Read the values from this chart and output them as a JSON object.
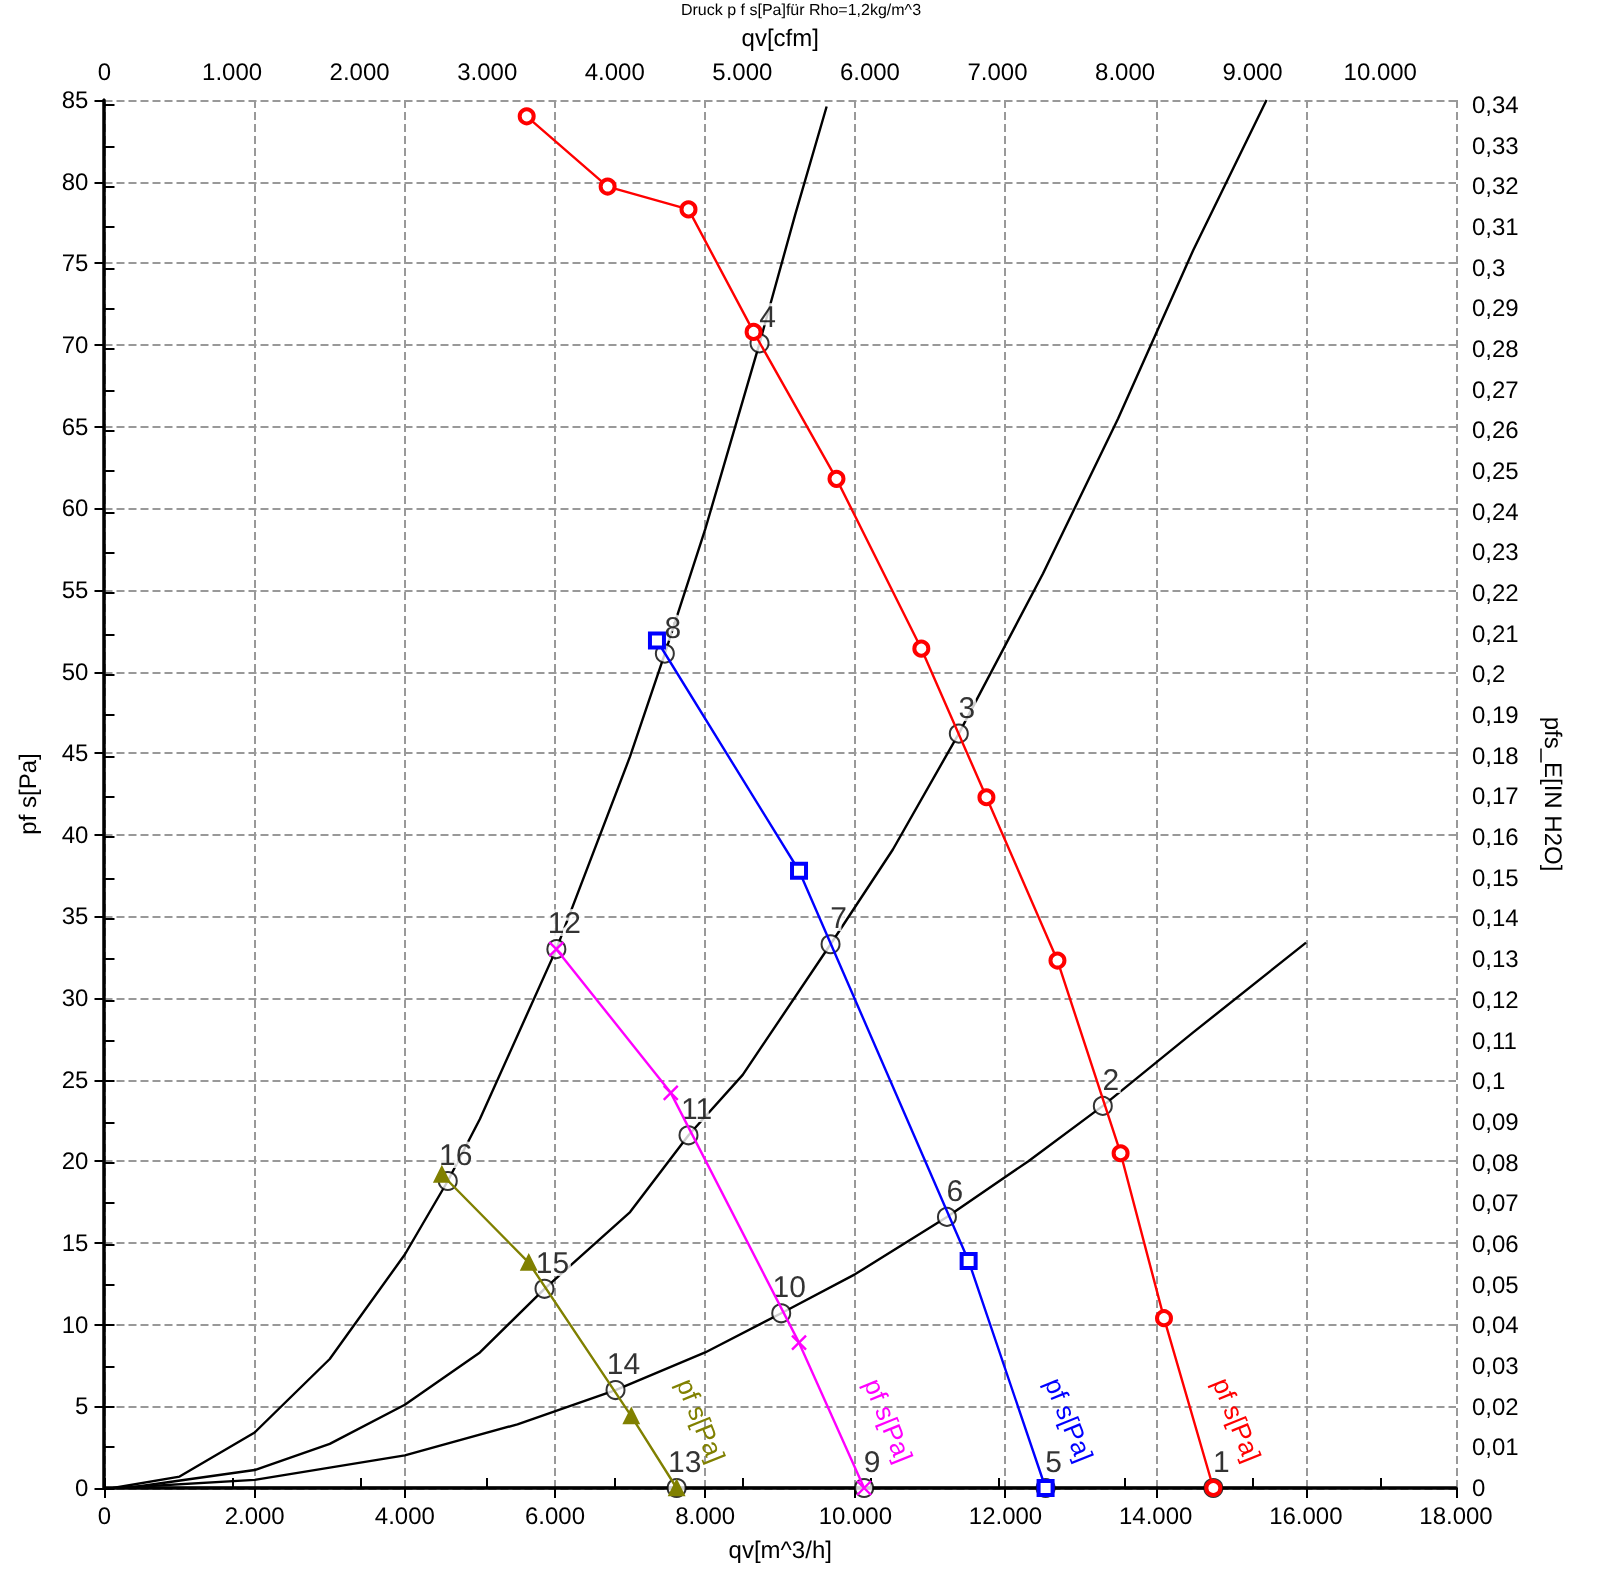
{
  "chart_data": {
    "type": "line",
    "title": "Druck p f s[Pa]für Rho=1,2kg/m^3",
    "xlabel": "qv[m^3/h]",
    "ylabel": "pf s[Pa]",
    "y2label": "pfs_E[IN H2O]",
    "x2label": "qv[cfm]",
    "xlim": [
      0,
      18000
    ],
    "xticks": [
      0,
      {
        "value": 2000,
        "label": "2.000"
      },
      {
        "value": 4000,
        "label": "4.000"
      },
      {
        "value": 6000,
        "label": "6.000"
      },
      {
        "value": 8000,
        "label": "8.000"
      },
      {
        "value": 10000,
        "label": "10.000"
      },
      {
        "value": 12000,
        "label": "12.000"
      },
      {
        "value": 14000,
        "label": "14.000"
      },
      {
        "value": 16000,
        "label": "16.000"
      },
      {
        "value": 18000,
        "label": "18.000"
      }
    ],
    "x2lim": [
      0,
      10594
    ],
    "x2ticks": [
      0,
      {
        "value": 1000,
        "label": "1.000"
      },
      {
        "value": 2000,
        "label": "2.000"
      },
      {
        "value": 3000,
        "label": "3.000"
      },
      {
        "value": 4000,
        "label": "4.000"
      },
      {
        "value": 5000,
        "label": "5.000"
      },
      {
        "value": 6000,
        "label": "6.000"
      },
      {
        "value": 7000,
        "label": "7.000"
      },
      {
        "value": 8000,
        "label": "8.000"
      },
      {
        "value": 9000,
        "label": "9.000"
      },
      {
        "value": 10000,
        "label": "10.000"
      }
    ],
    "ylim": [
      0,
      85
    ],
    "yticks": [
      0,
      5,
      10,
      15,
      20,
      25,
      30,
      35,
      40,
      45,
      50,
      55,
      60,
      65,
      70,
      75,
      80,
      85
    ],
    "y2lim": [
      0,
      0.3412
    ],
    "y2ticks": [
      0,
      {
        "value": 0.01,
        "label": "0,01"
      },
      {
        "value": 0.02,
        "label": "0,02"
      },
      {
        "value": 0.03,
        "label": "0,03"
      },
      {
        "value": 0.04,
        "label": "0,04"
      },
      {
        "value": 0.05,
        "label": "0,05"
      },
      {
        "value": 0.06,
        "label": "0,06"
      },
      {
        "value": 0.07,
        "label": "0,07"
      },
      {
        "value": 0.08,
        "label": "0,08"
      },
      {
        "value": 0.09,
        "label": "0,09"
      },
      {
        "value": 0.1,
        "label": "0,1"
      },
      {
        "value": 0.11,
        "label": "0,11"
      },
      {
        "value": 0.12,
        "label": "0,12"
      },
      {
        "value": 0.13,
        "label": "0,13"
      },
      {
        "value": 0.14,
        "label": "0,14"
      },
      {
        "value": 0.15,
        "label": "0,15"
      },
      {
        "value": 0.16,
        "label": "0,16"
      },
      {
        "value": 0.17,
        "label": "0,17"
      },
      {
        "value": 0.18,
        "label": "0,18"
      },
      {
        "value": 0.19,
        "label": "0,19"
      },
      {
        "value": 0.2,
        "label": "0,2"
      },
      {
        "value": 0.21,
        "label": "0,21"
      },
      {
        "value": 0.22,
        "label": "0,22"
      },
      {
        "value": 0.23,
        "label": "0,23"
      },
      {
        "value": 0.24,
        "label": "0,24"
      },
      {
        "value": 0.25,
        "label": "0,25"
      },
      {
        "value": 0.26,
        "label": "0,26"
      },
      {
        "value": 0.27,
        "label": "0,27"
      },
      {
        "value": 0.28,
        "label": "0,28"
      },
      {
        "value": 0.29,
        "label": "0,29"
      },
      {
        "value": 0.3,
        "label": "0,3"
      },
      {
        "value": 0.31,
        "label": "0,31"
      },
      {
        "value": 0.32,
        "label": "0,32"
      },
      {
        "value": 0.33,
        "label": "0,33"
      },
      {
        "value": 0.34,
        "label": "0,34"
      }
    ],
    "grid": true,
    "series": [
      {
        "name": "pf s[Pa]",
        "color": "#ff0000",
        "marker": "circle",
        "x": [
          5623,
          6701,
          7778,
          8645,
          9749,
          10879,
          11746,
          12692,
          13533,
          14111,
          14768
        ],
        "values": [
          84.0,
          79.7,
          78.3,
          70.8,
          61.8,
          51.4,
          42.3,
          32.3,
          20.5,
          10.4,
          0
        ]
      },
      {
        "name": "pf s[Pa]",
        "color": "#0000ff",
        "marker": "square",
        "x": [
          7358,
          9250,
          11509,
          12534
        ],
        "values": [
          51.9,
          37.8,
          13.9,
          0
        ]
      },
      {
        "name": "pf s[Pa]",
        "color": "#ff00ff",
        "marker": "cross",
        "x": [
          6018,
          7542,
          9250,
          10117
        ],
        "values": [
          33.0,
          24.2,
          8.9,
          0
        ]
      },
      {
        "name": "pf s[Pa]",
        "color": "#808000",
        "marker": "triangle",
        "x": [
          4493,
          5650,
          7016,
          7620
        ],
        "values": [
          19.2,
          13.8,
          4.4,
          0
        ]
      },
      {
        "color": "#000000",
        "x": [
          113,
          1000,
          2000,
          3000,
          4000,
          4572,
          5000,
          6018,
          7000,
          7463,
          8000,
          8724,
          9200,
          9618
        ],
        "values": [
          0,
          0.7,
          3.4,
          7.9,
          14.3,
          18.8,
          22.6,
          33.0,
          44.8,
          51.1,
          58.7,
          70.1,
          78.0,
          84.6
        ]
      },
      {
        "color": "#000000",
        "x": [
          300,
          2000,
          3000,
          4000,
          5000,
          5860,
          7000,
          7778,
          8500,
          9670,
          10500,
          11378,
          12500,
          13500,
          14500,
          15477
        ],
        "values": [
          0,
          1.1,
          2.7,
          5.1,
          8.3,
          12.2,
          16.9,
          21.6,
          25.3,
          33.3,
          39.1,
          46.2,
          56.0,
          65.5,
          75.8,
          85.0
        ]
      },
      {
        "color": "#000000",
        "x": [
          150,
          2000,
          4000,
          5500,
          6806,
          8000,
          9013,
          10000,
          11220,
          12300,
          13296,
          14500,
          16003
        ],
        "values": [
          0,
          0.5,
          2.0,
          3.9,
          6.0,
          8.3,
          10.7,
          13.1,
          16.6,
          20.0,
          23.4,
          27.9,
          33.4
        ]
      },
      {
        "color": "#000000",
        "x": [
          500,
          7620,
          10117,
          12534,
          14768,
          16000
        ],
        "values": [
          0,
          0,
          0,
          0,
          0,
          0
        ]
      }
    ],
    "annotations": [
      {
        "text": "1",
        "x": 14768,
        "y": 0
      },
      {
        "text": "2",
        "x": 13296,
        "y": 23.4
      },
      {
        "text": "3",
        "x": 11378,
        "y": 46.2
      },
      {
        "text": "4",
        "x": 8724,
        "y": 70.1
      },
      {
        "text": "5",
        "x": 12534,
        "y": 0
      },
      {
        "text": "6",
        "x": 11220,
        "y": 16.6
      },
      {
        "text": "7",
        "x": 9670,
        "y": 33.3
      },
      {
        "text": "8",
        "x": 7463,
        "y": 51.1
      },
      {
        "text": "9",
        "x": 10117,
        "y": 0
      },
      {
        "text": "10",
        "x": 9013,
        "y": 10.7
      },
      {
        "text": "11",
        "x": 7778,
        "y": 21.6
      },
      {
        "text": "12",
        "x": 6018,
        "y": 33.0
      },
      {
        "text": "13",
        "x": 7620,
        "y": 0
      },
      {
        "text": "14",
        "x": 6806,
        "y": 6.0
      },
      {
        "text": "15",
        "x": 5860,
        "y": 12.2
      },
      {
        "text": "16",
        "x": 4572,
        "y": 18.8
      }
    ]
  }
}
